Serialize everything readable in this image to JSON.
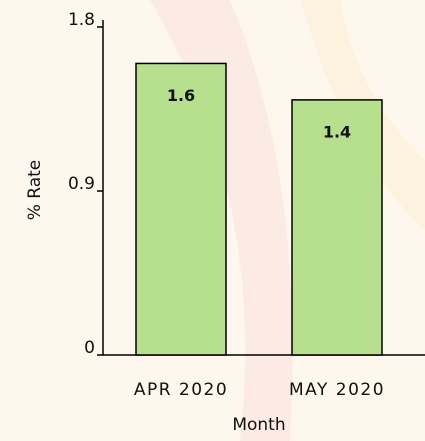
{
  "chart_data": {
    "type": "bar",
    "x_label": "Month",
    "y_label": "% Rate",
    "categories": [
      "APR 2020",
      "MAY 2020"
    ],
    "values": [
      1.6,
      1.4
    ],
    "color": "#b6e08e",
    "ylim": [
      0,
      1.8
    ],
    "yticks": [
      0,
      0.9,
      1.8
    ],
    "grid": false
  }
}
